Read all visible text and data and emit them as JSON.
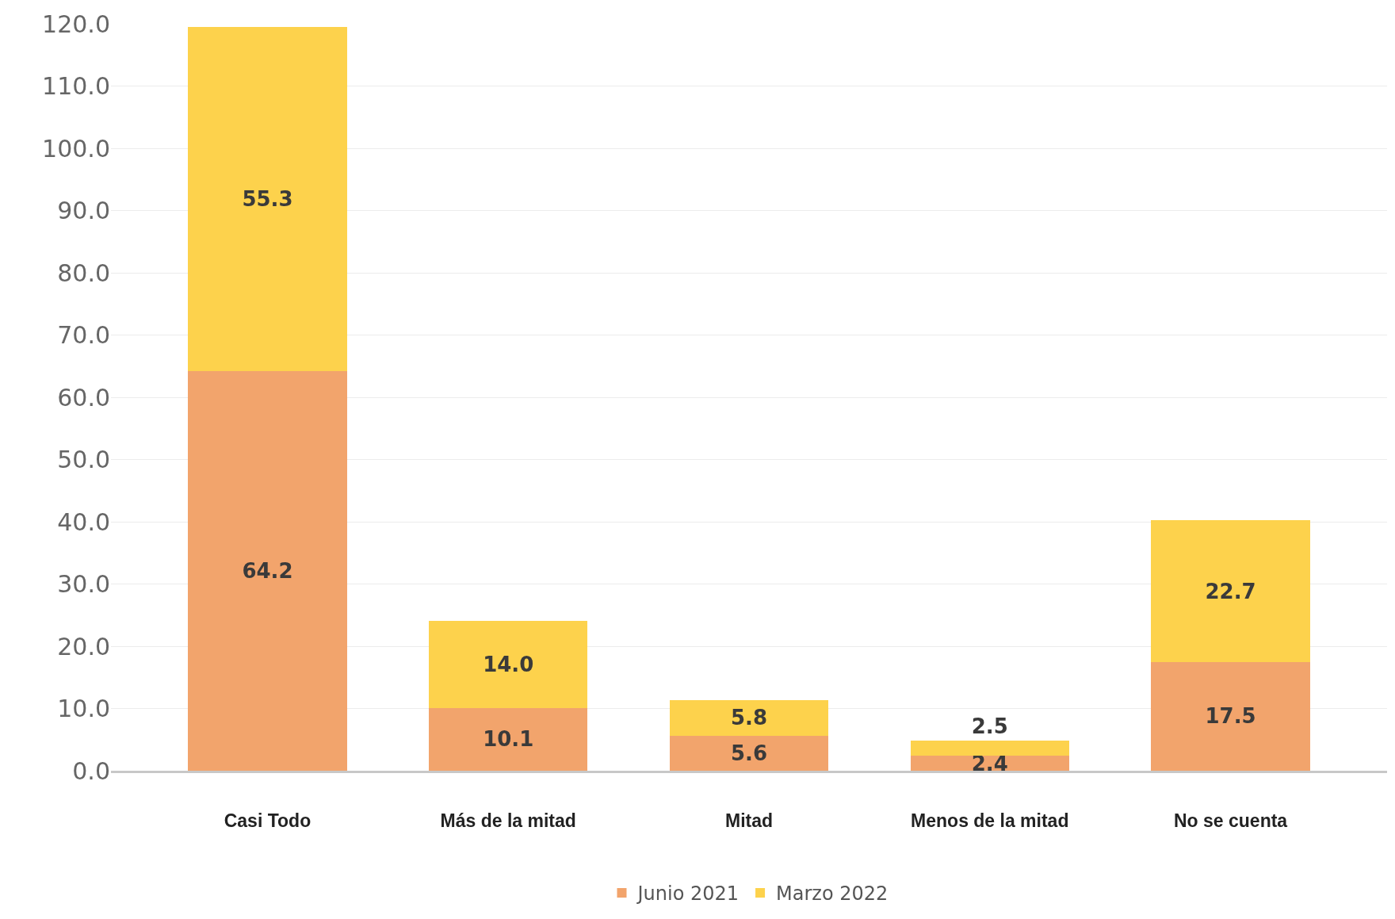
{
  "chart_data": {
    "type": "bar",
    "stacked": true,
    "categories": [
      "Casi Todo",
      "Más de la mitad",
      "Mitad",
      "Menos de la mitad",
      "No se cuenta"
    ],
    "series": [
      {
        "name": "Junio 2021",
        "color": "#f2a46c",
        "values": [
          64.2,
          10.1,
          5.6,
          2.4,
          17.5
        ],
        "value_labels": [
          "64.2",
          "10.1",
          "5.6",
          "2.4",
          "17.5"
        ]
      },
      {
        "name": "Marzo 2022",
        "color": "#fdd24c",
        "values": [
          55.3,
          14.0,
          5.8,
          2.5,
          22.7
        ],
        "value_labels": [
          "55.3",
          "14.0",
          "5.8",
          "2.5",
          "22.7"
        ]
      }
    ],
    "ylim": [
      0,
      120
    ],
    "yticks": [
      {
        "value": 0,
        "label": "0.0"
      },
      {
        "value": 10,
        "label": "10.0"
      },
      {
        "value": 20,
        "label": "20.0"
      },
      {
        "value": 30,
        "label": "30.0"
      },
      {
        "value": 40,
        "label": "40.0"
      },
      {
        "value": 50,
        "label": "50.0"
      },
      {
        "value": 60,
        "label": "60.0"
      },
      {
        "value": 70,
        "label": "70.0"
      },
      {
        "value": 80,
        "label": "80.0"
      },
      {
        "value": 90,
        "label": "90.0"
      },
      {
        "value": 100,
        "label": "100.0"
      },
      {
        "value": 110,
        "label": "110.0"
      },
      {
        "value": 120,
        "label": "120.0"
      }
    ],
    "grid": "y",
    "legend": "bottom"
  }
}
